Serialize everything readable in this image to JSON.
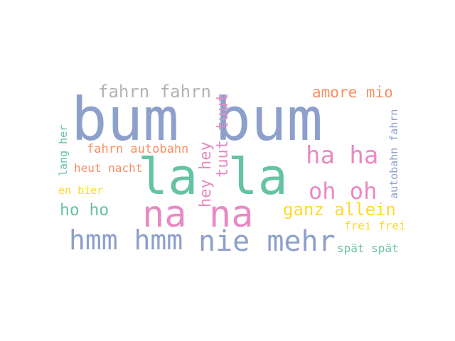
{
  "word_cloud": {
    "palette": {
      "blue": "#8da0cb",
      "green": "#66c2a5",
      "pink": "#e78ac3",
      "orange": "#fc8d62",
      "yellow": "#ffd92f",
      "gray": "#b3b3b3"
    },
    "words": [
      {
        "text": "bum bum",
        "color": "#8da0cb",
        "rotated": false
      },
      {
        "text": "la la",
        "color": "#66c2a5",
        "rotated": false
      },
      {
        "text": "na na",
        "color": "#e78ac3",
        "rotated": false
      },
      {
        "text": "fahrn fahrn",
        "color": "#b3b3b3",
        "rotated": false
      },
      {
        "text": "amore mio",
        "color": "#fc8d62",
        "rotated": false
      },
      {
        "text": "ha ha",
        "color": "#e78ac3",
        "rotated": false
      },
      {
        "text": "oh oh",
        "color": "#e78ac3",
        "rotated": false
      },
      {
        "text": "hmm hmm",
        "color": "#8da0cb",
        "rotated": false
      },
      {
        "text": "nie mehr",
        "color": "#8da0cb",
        "rotated": false
      },
      {
        "text": "ganz allein",
        "color": "#ffd92f",
        "rotated": false
      },
      {
        "text": "ho ho",
        "color": "#66c2a5",
        "rotated": false
      },
      {
        "text": "fahrn autobahn",
        "color": "#fc8d62",
        "rotated": false
      },
      {
        "text": "heut nacht",
        "color": "#fc8d62",
        "rotated": false
      },
      {
        "text": "en bier",
        "color": "#ffd92f",
        "rotated": false
      },
      {
        "text": "frei frei",
        "color": "#ffd92f",
        "rotated": false
      },
      {
        "text": "spät spät",
        "color": "#66c2a5",
        "rotated": false
      },
      {
        "text": "tuut tuut",
        "color": "#e78ac3",
        "rotated": true
      },
      {
        "text": "hey hey",
        "color": "#e78ac3",
        "rotated": true
      },
      {
        "text": "lang her",
        "color": "#66c2a5",
        "rotated": true
      },
      {
        "text": "autobahn fahrn",
        "color": "#8da0cb",
        "rotated": true
      }
    ]
  }
}
